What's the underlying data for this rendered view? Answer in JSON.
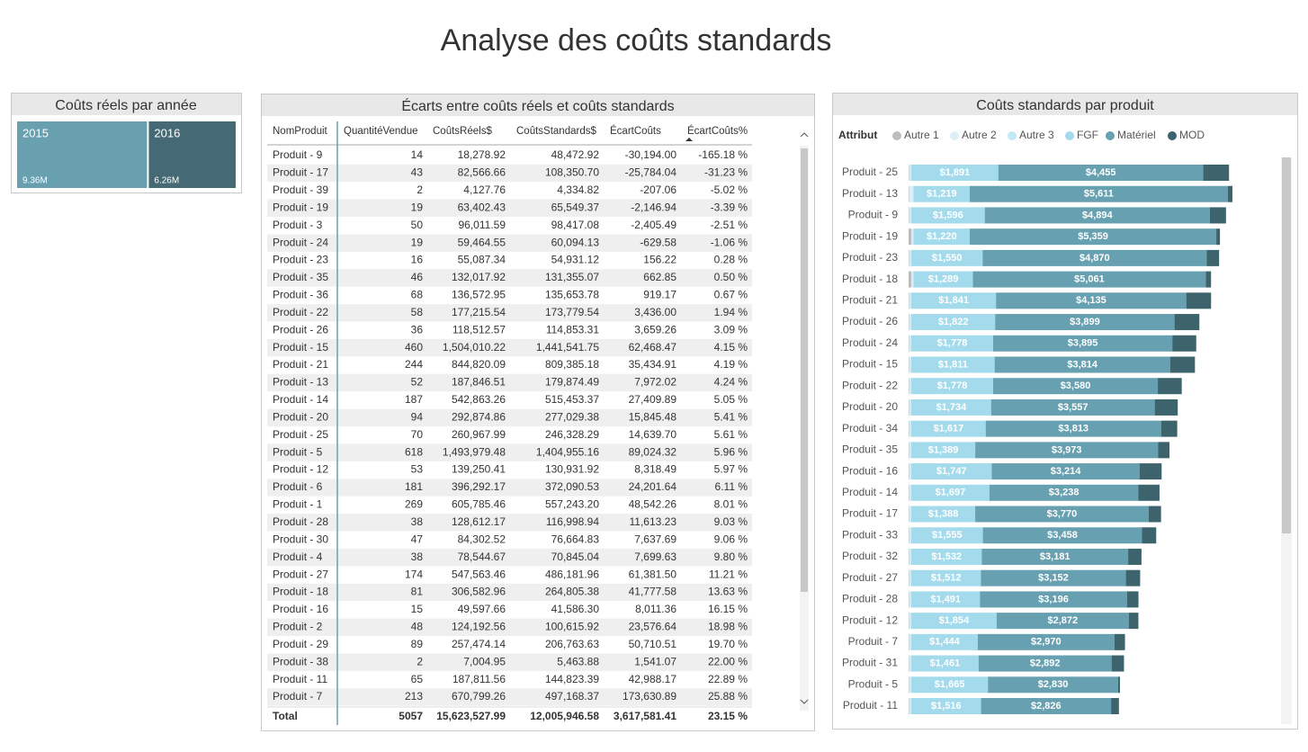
{
  "header": {
    "title": "Analyse des coûts standards"
  },
  "chart_data": [
    {
      "type": "treemap",
      "title": "Coûts réels par année",
      "categories": [
        "2015",
        "2016"
      ],
      "values": [
        9.36,
        6.26
      ],
      "value_labels": [
        "9.36M",
        "6.26M"
      ],
      "colors": [
        "#68a0b0",
        "#456a75"
      ]
    },
    {
      "type": "stacked-bar-horizontal",
      "title": "Coûts standards par produit",
      "legend_title": "Attribut",
      "categories": [
        "Produit - 25",
        "Produit - 13",
        "Produit - 9",
        "Produit - 19",
        "Produit - 23",
        "Produit - 18",
        "Produit - 21",
        "Produit - 26",
        "Produit - 24",
        "Produit - 15",
        "Produit - 22",
        "Produit - 20",
        "Produit - 34",
        "Produit - 35",
        "Produit - 16",
        "Produit - 14",
        "Produit - 17",
        "Produit - 33",
        "Produit - 32",
        "Produit - 27",
        "Produit - 28",
        "Produit - 12",
        "Produit - 7",
        "Produit - 31",
        "Produit - 5",
        "Produit - 11"
      ],
      "series": [
        {
          "name": "Autre 1",
          "color": "#bdbdbd",
          "values": [
            10,
            10,
            10,
            60,
            10,
            60,
            10,
            10,
            10,
            10,
            10,
            10,
            10,
            10,
            10,
            10,
            10,
            10,
            10,
            10,
            10,
            10,
            10,
            10,
            10,
            10
          ]
        },
        {
          "name": "Autre 2",
          "color": "#dcf0f6",
          "values": [
            30,
            80,
            30,
            30,
            30,
            30,
            30,
            30,
            30,
            30,
            30,
            30,
            30,
            30,
            30,
            30,
            30,
            30,
            30,
            30,
            30,
            30,
            30,
            30,
            30,
            30
          ]
        },
        {
          "name": "Autre 3",
          "color": "#c3e9f4",
          "values": [
            20,
            20,
            20,
            20,
            20,
            20,
            20,
            20,
            20,
            20,
            20,
            20,
            20,
            20,
            20,
            20,
            20,
            20,
            20,
            20,
            20,
            20,
            20,
            20,
            20,
            20
          ]
        },
        {
          "name": "FGF",
          "color": "#a3dbed",
          "values": [
            1891,
            1219,
            1596,
            1220,
            1550,
            1289,
            1841,
            1822,
            1778,
            1811,
            1778,
            1734,
            1617,
            1389,
            1747,
            1697,
            1388,
            1555,
            1532,
            1512,
            1491,
            1854,
            1444,
            1461,
            1665,
            1516
          ],
          "value_labels": [
            "$1,891",
            "$1,219",
            "$1,596",
            "$1,220",
            "$1,550",
            "$1,289",
            "$1,841",
            "$1,822",
            "$1,778",
            "$1,811",
            "$1,778",
            "$1,734",
            "$1,617",
            "$1,389",
            "$1,747",
            "$1,697",
            "$1,388",
            "$1,555",
            "$1,532",
            "$1,512",
            "$1,491",
            "$1,854",
            "$1,444",
            "$1,461",
            "$1,665",
            "$1,516"
          ]
        },
        {
          "name": "Matériel",
          "color": "#67a0b0",
          "values": [
            4455,
            5611,
            4894,
            5359,
            4870,
            5061,
            4135,
            3899,
            3895,
            3814,
            3580,
            3557,
            3813,
            3973,
            3214,
            3238,
            3770,
            3458,
            3181,
            3152,
            3196,
            2872,
            2970,
            2892,
            2830,
            2826
          ],
          "value_labels": [
            "$4,455",
            "$5,611",
            "$4,894",
            "$5,359",
            "$4,870",
            "$5,061",
            "$4,135",
            "$3,899",
            "$3,895",
            "$3,814",
            "$3,580",
            "$3,557",
            "$3,813",
            "$3,973",
            "$3,214",
            "$3,238",
            "$3,770",
            "$3,458",
            "$3,181",
            "$3,152",
            "$3,196",
            "$2,872",
            "$2,970",
            "$2,892",
            "$2,830",
            "$2,826"
          ]
        },
        {
          "name": "MOD",
          "color": "#3d636d",
          "values": [
            560,
            100,
            350,
            80,
            270,
            115,
            540,
            540,
            520,
            540,
            520,
            500,
            350,
            250,
            480,
            460,
            270,
            310,
            290,
            310,
            250,
            210,
            230,
            270,
            40,
            170
          ]
        }
      ]
    }
  ],
  "table": {
    "title": "Écarts entre coûts réels et coûts standards",
    "columns": [
      "NomProduit",
      "QuantitéVendue",
      "CoûtsRéels$",
      "CoûtsStandards$",
      "ÉcartCoûts",
      "ÉcartCoûts%"
    ],
    "rows": [
      [
        "Produit - 9",
        "14",
        "18,278.92",
        "48,472.92",
        "-30,194.00",
        "-165.18 %"
      ],
      [
        "Produit - 17",
        "43",
        "82,566.66",
        "108,350.70",
        "-25,784.04",
        "-31.23 %"
      ],
      [
        "Produit - 39",
        "2",
        "4,127.76",
        "4,334.82",
        "-207.06",
        "-5.02 %"
      ],
      [
        "Produit - 19",
        "19",
        "63,402.43",
        "65,549.37",
        "-2,146.94",
        "-3.39 %"
      ],
      [
        "Produit - 3",
        "50",
        "96,011.59",
        "98,417.08",
        "-2,405.49",
        "-2.51 %"
      ],
      [
        "Produit - 24",
        "19",
        "59,464.55",
        "60,094.13",
        "-629.58",
        "-1.06 %"
      ],
      [
        "Produit - 23",
        "16",
        "55,087.34",
        "54,931.12",
        "156.22",
        "0.28 %"
      ],
      [
        "Produit - 35",
        "46",
        "132,017.92",
        "131,355.07",
        "662.85",
        "0.50 %"
      ],
      [
        "Produit - 36",
        "68",
        "136,572.95",
        "135,653.78",
        "919.17",
        "0.67 %"
      ],
      [
        "Produit - 22",
        "58",
        "177,215.54",
        "173,779.54",
        "3,436.00",
        "1.94 %"
      ],
      [
        "Produit - 26",
        "36",
        "118,512.57",
        "114,853.31",
        "3,659.26",
        "3.09 %"
      ],
      [
        "Produit - 15",
        "460",
        "1,504,010.22",
        "1,441,541.75",
        "62,468.47",
        "4.15 %"
      ],
      [
        "Produit - 21",
        "244",
        "844,820.09",
        "809,385.18",
        "35,434.91",
        "4.19 %"
      ],
      [
        "Produit - 13",
        "52",
        "187,846.51",
        "179,874.49",
        "7,972.02",
        "4.24 %"
      ],
      [
        "Produit - 14",
        "187",
        "542,863.26",
        "515,453.37",
        "27,409.89",
        "5.05 %"
      ],
      [
        "Produit - 20",
        "94",
        "292,874.86",
        "277,029.38",
        "15,845.48",
        "5.41 %"
      ],
      [
        "Produit - 25",
        "70",
        "260,967.99",
        "246,328.29",
        "14,639.70",
        "5.61 %"
      ],
      [
        "Produit - 5",
        "618",
        "1,493,979.48",
        "1,404,955.16",
        "89,024.32",
        "5.96 %"
      ],
      [
        "Produit - 12",
        "53",
        "139,250.41",
        "130,931.92",
        "8,318.49",
        "5.97 %"
      ],
      [
        "Produit - 6",
        "181",
        "396,292.17",
        "372,090.53",
        "24,201.64",
        "6.11 %"
      ],
      [
        "Produit - 1",
        "269",
        "605,785.46",
        "557,243.20",
        "48,542.26",
        "8.01 %"
      ],
      [
        "Produit - 28",
        "38",
        "128,612.17",
        "116,998.94",
        "11,613.23",
        "9.03 %"
      ],
      [
        "Produit - 30",
        "47",
        "84,302.52",
        "76,664.83",
        "7,637.69",
        "9.06 %"
      ],
      [
        "Produit - 4",
        "38",
        "78,544.67",
        "70,845.04",
        "7,699.63",
        "9.80 %"
      ],
      [
        "Produit - 27",
        "174",
        "547,563.46",
        "486,181.96",
        "61,381.50",
        "11.21 %"
      ],
      [
        "Produit - 18",
        "81",
        "306,582.96",
        "264,805.38",
        "41,777.58",
        "13.63 %"
      ],
      [
        "Produit - 16",
        "15",
        "49,597.66",
        "41,586.30",
        "8,011.36",
        "16.15 %"
      ],
      [
        "Produit - 2",
        "48",
        "124,192.56",
        "100,615.92",
        "23,576.64",
        "18.98 %"
      ],
      [
        "Produit - 29",
        "89",
        "257,474.14",
        "206,763.63",
        "50,710.51",
        "19.70 %"
      ],
      [
        "Produit - 38",
        "2",
        "7,004.95",
        "5,463.88",
        "1,541.07",
        "22.00 %"
      ],
      [
        "Produit - 11",
        "65",
        "187,811.56",
        "144,823.39",
        "42,988.17",
        "22.89 %"
      ],
      [
        "Produit - 7",
        "213",
        "670,799.26",
        "497,168.37",
        "173,630.89",
        "25.88 %"
      ]
    ],
    "total": [
      "Total",
      "5057",
      "15,623,527.99",
      "12,005,946.58",
      "3,617,581.41",
      "23.15 %"
    ]
  }
}
